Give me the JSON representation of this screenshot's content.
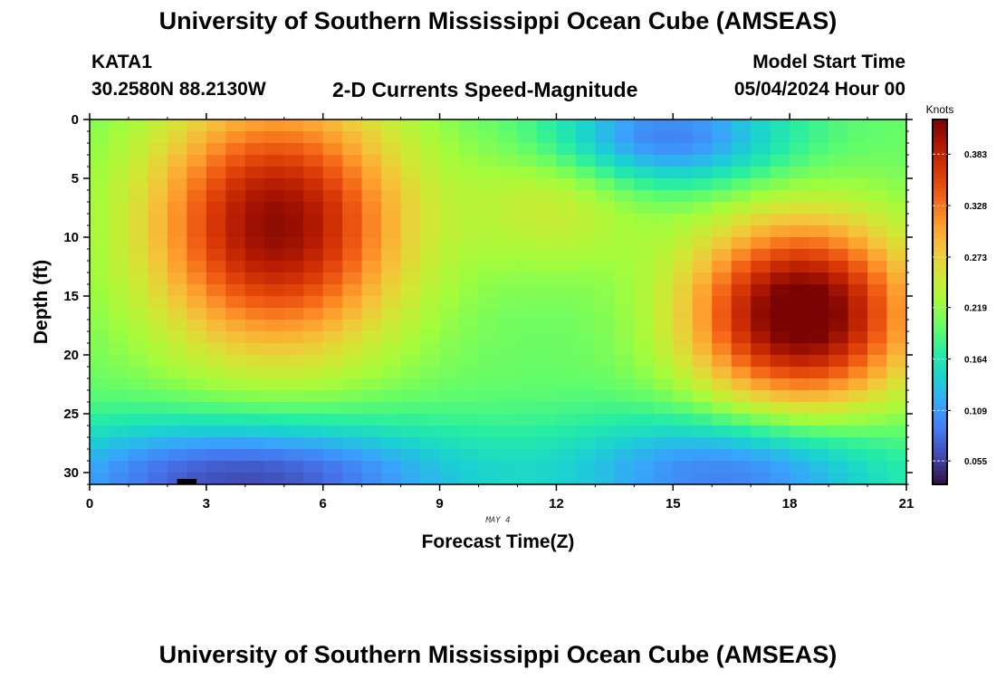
{
  "header": {
    "title": "University of Southern Mississippi Ocean Cube (AMSEAS)",
    "station": "KATA1",
    "coords": "30.2580N  88.2130W",
    "subtitle": "2-D Currents Speed-Magnitude",
    "model_label": "Model Start Time",
    "model_time": "05/04/2024 Hour 00"
  },
  "footer": {
    "title": "University of Southern Mississippi Ocean Cube (AMSEAS)"
  },
  "chart_data": {
    "type": "heatmap",
    "title": "2-D Currents Speed-Magnitude",
    "xlabel": "Forecast Time(Z)",
    "ylabel": "Depth (ft)",
    "date_label": "MAY 4",
    "xlim": [
      0,
      21
    ],
    "ylim": [
      31,
      0
    ],
    "xticks": [
      0,
      3,
      6,
      9,
      12,
      15,
      18,
      21
    ],
    "xtick_labels": [
      "0",
      "3",
      "6",
      "9",
      "12",
      "15",
      "18",
      "21"
    ],
    "yticks": [
      0,
      5,
      10,
      15,
      20,
      25,
      30
    ],
    "ytick_labels": [
      "0",
      "5",
      "10",
      "15",
      "20",
      "25",
      "30"
    ],
    "colorbar": {
      "label": "Knots",
      "range": [
        0.03,
        0.42
      ],
      "ticks": [
        0.055,
        0.109,
        0.164,
        0.219,
        0.273,
        0.328,
        0.383
      ],
      "tick_labels": [
        "0.055",
        "0.109",
        "0.164",
        "0.219",
        "0.273",
        "0.328",
        "0.383"
      ]
    },
    "grid": {
      "nx": 42,
      "ny": 31
    },
    "features": [
      {
        "x": 4.8,
        "y": 9.0,
        "sx": 2.3,
        "sy": 7.5,
        "amp": 0.21,
        "desc": "strong surface-mid jet"
      },
      {
        "x": 18.3,
        "y": 16.5,
        "sx": 2.0,
        "sy": 5.5,
        "amp": 0.24,
        "desc": "mid-depth maximum"
      },
      {
        "x": 12.0,
        "y": 7.0,
        "sx": 1.6,
        "sy": 4.0,
        "amp": 0.05,
        "desc": "secondary mid-column band"
      },
      {
        "x": 14.8,
        "y": 1.5,
        "sx": 2.2,
        "sy": 3.0,
        "amp": -0.11,
        "desc": "weak surface flow"
      },
      {
        "x": 4.0,
        "y": 30.5,
        "sx": 4.0,
        "sy": 3.5,
        "amp": -0.14,
        "desc": "weak bottom flow"
      },
      {
        "x": 16.5,
        "y": 30.0,
        "sx": 3.0,
        "sy": 3.5,
        "amp": -0.11,
        "desc": "weak bottom flow"
      }
    ],
    "base_value": 0.2
  },
  "colors": {
    "scale": [
      "#30123b",
      "#4145ab",
      "#4675ed",
      "#39a2fc",
      "#1bcfd4",
      "#24eca6",
      "#61fc6c",
      "#a4fc3b",
      "#d1e834",
      "#f3c63a",
      "#fe9b2d",
      "#f36315",
      "#d93806",
      "#b11901",
      "#7a0403"
    ]
  }
}
